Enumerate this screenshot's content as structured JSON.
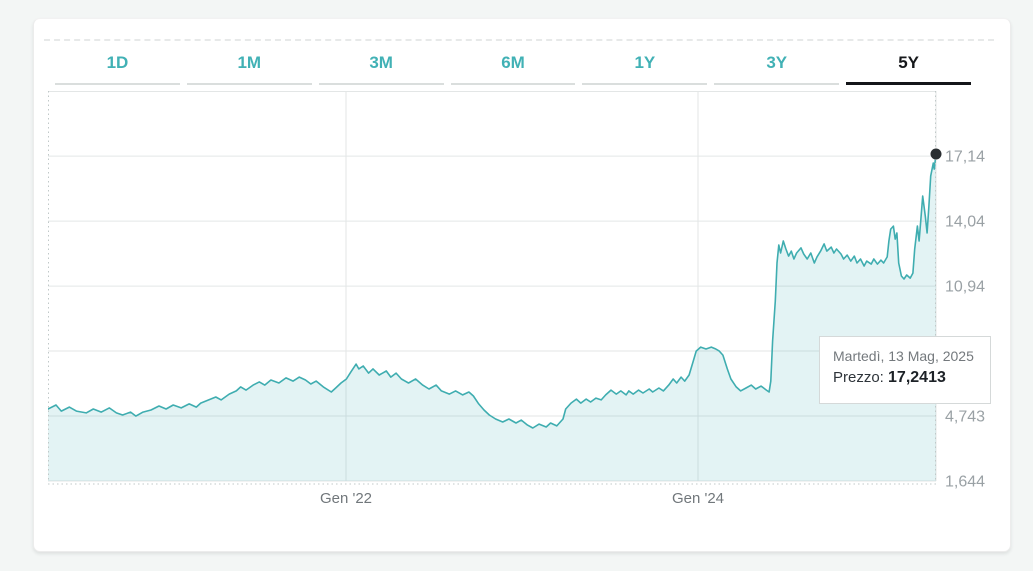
{
  "tabs": {
    "items": [
      {
        "label": "1D",
        "active": false
      },
      {
        "label": "1M",
        "active": false
      },
      {
        "label": "3M",
        "active": false
      },
      {
        "label": "6M",
        "active": false
      },
      {
        "label": "1Y",
        "active": false
      },
      {
        "label": "3Y",
        "active": false
      },
      {
        "label": "5Y",
        "active": true
      }
    ]
  },
  "tooltip": {
    "date_line": "Martedì, 13 Mag, 2025",
    "price_label": "Prezzo: ",
    "price_value": "17,2413"
  },
  "colors": {
    "accent_teal": "#41b1b5",
    "line": "#3fadb0",
    "area_fill": "rgba(69,176,180,0.15)",
    "active_tab": "#141619",
    "marker": "#2b2f32",
    "page_bg": "#f3f6f5"
  },
  "chart_data": {
    "type": "area",
    "title": "",
    "xlabel": "",
    "ylabel": "",
    "legend": "none",
    "grid": true,
    "ylim": [
      1.644,
      20.244
    ],
    "y_gridlines": [
      17.14,
      14.04,
      10.94,
      7.843,
      4.743,
      1.644
    ],
    "y_ticks": [
      {
        "label": "17,14",
        "value": 17.14
      },
      {
        "label": "14,04",
        "value": 14.04
      },
      {
        "label": "10,94",
        "value": 10.94
      },
      {
        "label": "4,743",
        "value": 4.743
      },
      {
        "label": "1,644",
        "value": 1.644
      }
    ],
    "x_ticks": [
      {
        "label": "Gen '22",
        "t": 0.3356
      },
      {
        "label": "Gen '24",
        "t": 0.732
      }
    ],
    "last_point_price": 17.2413,
    "series": [
      {
        "name": "Prezzo",
        "points": [
          [
            0,
            5.08
          ],
          [
            0.009,
            5.27
          ],
          [
            0.015,
            4.98
          ],
          [
            0.024,
            5.17
          ],
          [
            0.032,
            4.98
          ],
          [
            0.043,
            4.89
          ],
          [
            0.051,
            5.08
          ],
          [
            0.06,
            4.93
          ],
          [
            0.069,
            5.13
          ],
          [
            0.077,
            4.89
          ],
          [
            0.084,
            4.79
          ],
          [
            0.093,
            4.93
          ],
          [
            0.099,
            4.74
          ],
          [
            0.107,
            4.93
          ],
          [
            0.116,
            5.03
          ],
          [
            0.125,
            5.22
          ],
          [
            0.133,
            5.08
          ],
          [
            0.141,
            5.27
          ],
          [
            0.15,
            5.13
          ],
          [
            0.159,
            5.32
          ],
          [
            0.167,
            5.17
          ],
          [
            0.172,
            5.36
          ],
          [
            0.181,
            5.51
          ],
          [
            0.189,
            5.65
          ],
          [
            0.195,
            5.51
          ],
          [
            0.204,
            5.79
          ],
          [
            0.212,
            5.94
          ],
          [
            0.217,
            6.13
          ],
          [
            0.223,
            5.98
          ],
          [
            0.231,
            6.22
          ],
          [
            0.238,
            6.37
          ],
          [
            0.244,
            6.22
          ],
          [
            0.251,
            6.46
          ],
          [
            0.26,
            6.32
          ],
          [
            0.268,
            6.56
          ],
          [
            0.276,
            6.41
          ],
          [
            0.283,
            6.6
          ],
          [
            0.29,
            6.46
          ],
          [
            0.296,
            6.27
          ],
          [
            0.302,
            6.41
          ],
          [
            0.31,
            6.13
          ],
          [
            0.319,
            5.89
          ],
          [
            0.324,
            6.08
          ],
          [
            0.33,
            6.32
          ],
          [
            0.336,
            6.51
          ],
          [
            0.341,
            6.84
          ],
          [
            0.347,
            7.22
          ],
          [
            0.35,
            6.99
          ],
          [
            0.355,
            7.13
          ],
          [
            0.361,
            6.79
          ],
          [
            0.366,
            6.99
          ],
          [
            0.373,
            6.7
          ],
          [
            0.381,
            6.89
          ],
          [
            0.386,
            6.6
          ],
          [
            0.392,
            6.79
          ],
          [
            0.398,
            6.51
          ],
          [
            0.406,
            6.32
          ],
          [
            0.414,
            6.51
          ],
          [
            0.422,
            6.22
          ],
          [
            0.429,
            6.03
          ],
          [
            0.437,
            6.22
          ],
          [
            0.443,
            5.94
          ],
          [
            0.452,
            5.79
          ],
          [
            0.459,
            5.94
          ],
          [
            0.467,
            5.75
          ],
          [
            0.474,
            5.89
          ],
          [
            0.479,
            5.7
          ],
          [
            0.485,
            5.32
          ],
          [
            0.491,
            5.03
          ],
          [
            0.497,
            4.79
          ],
          [
            0.504,
            4.6
          ],
          [
            0.512,
            4.46
          ],
          [
            0.519,
            4.6
          ],
          [
            0.527,
            4.41
          ],
          [
            0.533,
            4.55
          ],
          [
            0.54,
            4.31
          ],
          [
            0.546,
            4.17
          ],
          [
            0.553,
            4.36
          ],
          [
            0.561,
            4.22
          ],
          [
            0.566,
            4.41
          ],
          [
            0.573,
            4.27
          ],
          [
            0.58,
            4.6
          ],
          [
            0.583,
            5.08
          ],
          [
            0.589,
            5.36
          ],
          [
            0.595,
            5.55
          ],
          [
            0.6,
            5.36
          ],
          [
            0.606,
            5.55
          ],
          [
            0.611,
            5.41
          ],
          [
            0.617,
            5.6
          ],
          [
            0.623,
            5.51
          ],
          [
            0.628,
            5.75
          ],
          [
            0.634,
            5.98
          ],
          [
            0.64,
            5.79
          ],
          [
            0.645,
            5.94
          ],
          [
            0.651,
            5.75
          ],
          [
            0.654,
            5.94
          ],
          [
            0.659,
            5.79
          ],
          [
            0.665,
            5.98
          ],
          [
            0.67,
            5.84
          ],
          [
            0.677,
            6.03
          ],
          [
            0.681,
            5.89
          ],
          [
            0.688,
            6.08
          ],
          [
            0.693,
            5.94
          ],
          [
            0.699,
            6.22
          ],
          [
            0.704,
            6.51
          ],
          [
            0.708,
            6.32
          ],
          [
            0.713,
            6.6
          ],
          [
            0.717,
            6.41
          ],
          [
            0.722,
            6.7
          ],
          [
            0.726,
            7.27
          ],
          [
            0.73,
            7.84
          ],
          [
            0.735,
            8.03
          ],
          [
            0.741,
            7.94
          ],
          [
            0.747,
            8.03
          ],
          [
            0.752,
            7.94
          ],
          [
            0.756,
            7.84
          ],
          [
            0.76,
            7.65
          ],
          [
            0.765,
            6.99
          ],
          [
            0.769,
            6.51
          ],
          [
            0.775,
            6.13
          ],
          [
            0.78,
            5.94
          ],
          [
            0.786,
            6.08
          ],
          [
            0.792,
            6.22
          ],
          [
            0.797,
            6.03
          ],
          [
            0.803,
            6.17
          ],
          [
            0.809,
            5.98
          ],
          [
            0.812,
            5.89
          ],
          [
            0.814,
            6.41
          ],
          [
            0.816,
            8.32
          ],
          [
            0.819,
            10.23
          ],
          [
            0.821,
            12.04
          ],
          [
            0.823,
            12.9
          ],
          [
            0.825,
            12.52
          ],
          [
            0.828,
            13.09
          ],
          [
            0.831,
            12.71
          ],
          [
            0.834,
            12.37
          ],
          [
            0.837,
            12.61
          ],
          [
            0.84,
            12.23
          ],
          [
            0.843,
            12.52
          ],
          [
            0.848,
            12.76
          ],
          [
            0.851,
            12.47
          ],
          [
            0.855,
            12.23
          ],
          [
            0.859,
            12.52
          ],
          [
            0.863,
            12.04
          ],
          [
            0.866,
            12.33
          ],
          [
            0.87,
            12.61
          ],
          [
            0.874,
            12.95
          ],
          [
            0.877,
            12.61
          ],
          [
            0.882,
            12.8
          ],
          [
            0.885,
            12.52
          ],
          [
            0.888,
            12.71
          ],
          [
            0.893,
            12.47
          ],
          [
            0.896,
            12.23
          ],
          [
            0.9,
            12.42
          ],
          [
            0.904,
            12.13
          ],
          [
            0.908,
            12.37
          ],
          [
            0.911,
            12.04
          ],
          [
            0.915,
            12.23
          ],
          [
            0.919,
            11.9
          ],
          [
            0.922,
            12.13
          ],
          [
            0.927,
            11.99
          ],
          [
            0.93,
            12.23
          ],
          [
            0.934,
            11.99
          ],
          [
            0.938,
            12.18
          ],
          [
            0.941,
            12.04
          ],
          [
            0.945,
            12.33
          ],
          [
            0.947,
            13.09
          ],
          [
            0.949,
            13.66
          ],
          [
            0.952,
            13.8
          ],
          [
            0.954,
            13.18
          ],
          [
            0.956,
            13.47
          ],
          [
            0.958,
            12.04
          ],
          [
            0.961,
            11.42
          ],
          [
            0.964,
            11.28
          ],
          [
            0.967,
            11.47
          ],
          [
            0.971,
            11.32
          ],
          [
            0.974,
            11.56
          ],
          [
            0.976,
            12.71
          ],
          [
            0.979,
            13.8
          ],
          [
            0.981,
            13.09
          ],
          [
            0.983,
            14.14
          ],
          [
            0.985,
            15.23
          ],
          [
            0.988,
            14.28
          ],
          [
            0.99,
            13.47
          ],
          [
            0.992,
            14.76
          ],
          [
            0.994,
            16.19
          ],
          [
            0.997,
            16.81
          ],
          [
            0.998,
            16.52
          ],
          [
            1,
            17.2413
          ]
        ]
      }
    ]
  }
}
